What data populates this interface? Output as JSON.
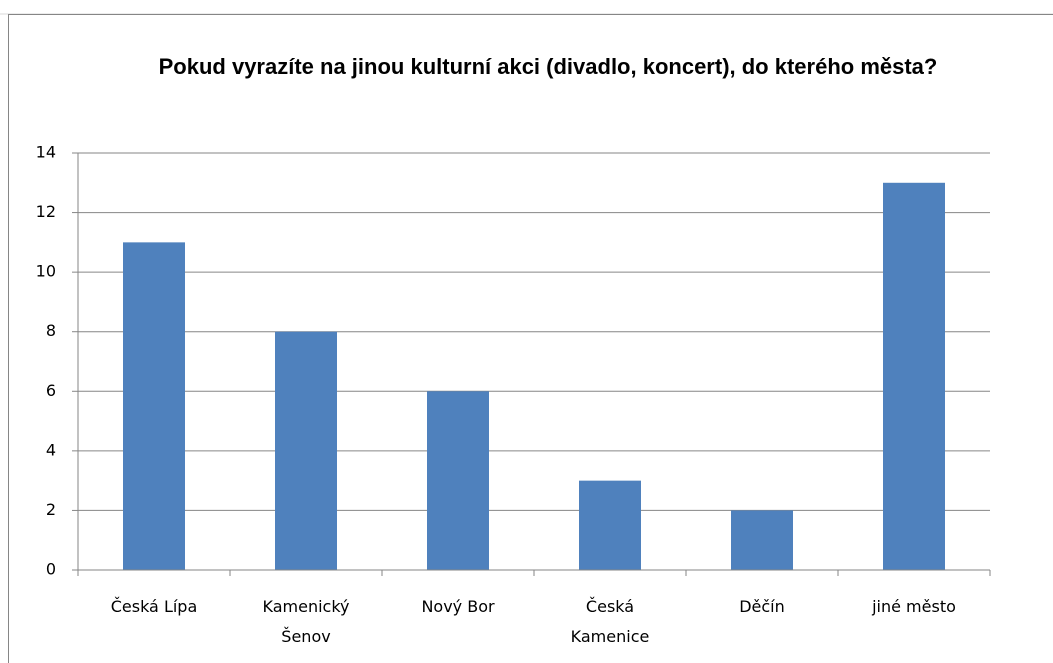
{
  "chart_data": {
    "type": "bar",
    "title": "Pokud vyrazíte na jinou kulturní akci (divadlo, koncert), do kterého města?",
    "categories": [
      "Česká Lípa",
      "Kamenický Šenov",
      "Nový Bor",
      "Česká Kamenice",
      "Děčín",
      "jiné město"
    ],
    "values": [
      11,
      8,
      6,
      3,
      2,
      13
    ],
    "color": "#4f81bd",
    "ylim": [
      0,
      14
    ],
    "yticks": [
      0,
      2,
      4,
      6,
      8,
      10,
      12,
      14
    ],
    "grid": true
  }
}
